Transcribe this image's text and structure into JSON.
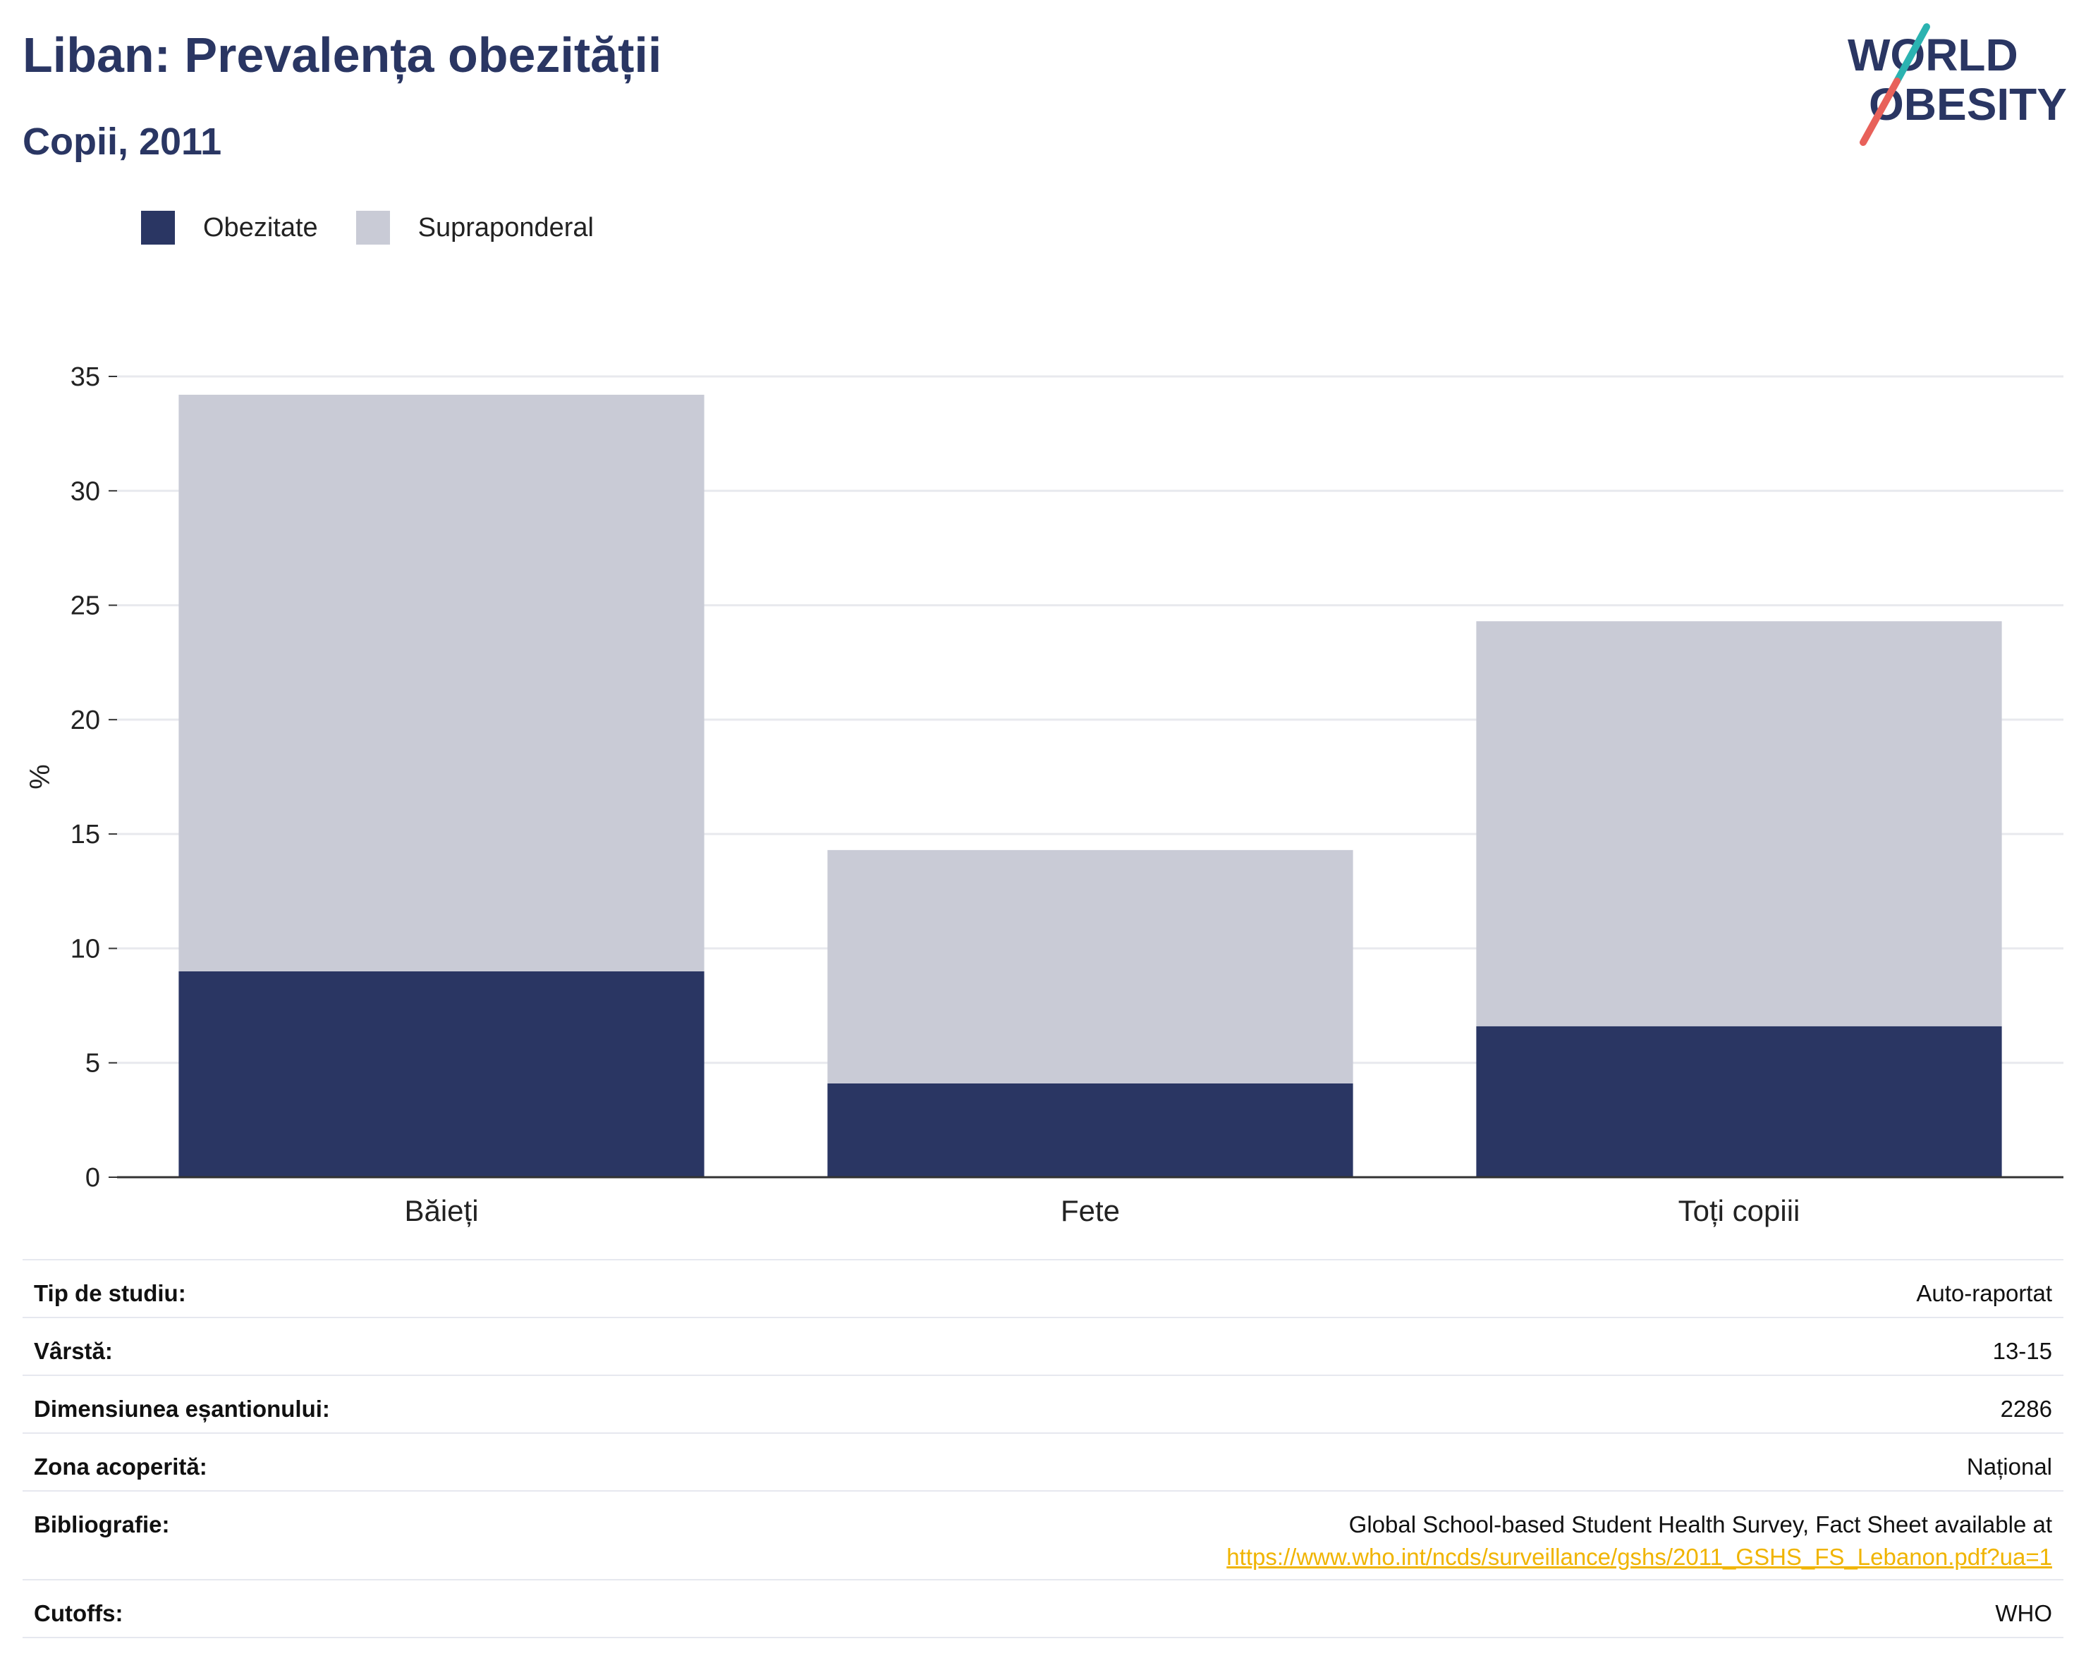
{
  "header": {
    "title": "Liban: Prevalența obezității",
    "subtitle": "Copii, 2011"
  },
  "logo": {
    "line1": "WORLD",
    "line2": "OBESITY",
    "text_color": "#2a3663",
    "slash_colors": [
      "#2bb3b1",
      "#e8615a"
    ]
  },
  "legend": {
    "items": [
      {
        "label": "Obezitate",
        "color": "#2a3663"
      },
      {
        "label": "Supraponderal",
        "color": "#c9cbd6"
      }
    ]
  },
  "chart_data": {
    "type": "bar",
    "stacked": true,
    "categories": [
      "Băieți",
      "Fete",
      "Toți copiii"
    ],
    "series": [
      {
        "name": "Obezitate",
        "color": "#2a3663",
        "values": [
          9.0,
          4.1,
          6.6
        ]
      },
      {
        "name": "Supraponderal",
        "color": "#c9cbd6",
        "values": [
          25.2,
          10.2,
          17.7
        ]
      }
    ],
    "ylabel": "%",
    "xlabel": "",
    "ylim": [
      0,
      35
    ],
    "yticks": [
      0,
      5,
      10,
      15,
      20,
      25,
      30,
      35
    ],
    "grid": true,
    "legend_position": "top-left"
  },
  "details": {
    "rows": [
      {
        "label": "Tip de studiu:",
        "value": "Auto-raportat"
      },
      {
        "label": "Vârstă:",
        "value": "13-15"
      },
      {
        "label": "Dimensiunea eșantionului:",
        "value": "2286"
      },
      {
        "label": "Zona acoperită:",
        "value": "Național"
      },
      {
        "label": "Bibliografie:",
        "value": "Global School-based Student Health Survey, Fact Sheet available at",
        "link": "https://www.who.int/ncds/surveillance/gshs/2011_GSHS_FS_Lebanon.pdf?ua=1"
      },
      {
        "label": "Cutoffs:",
        "value": "WHO"
      }
    ]
  }
}
